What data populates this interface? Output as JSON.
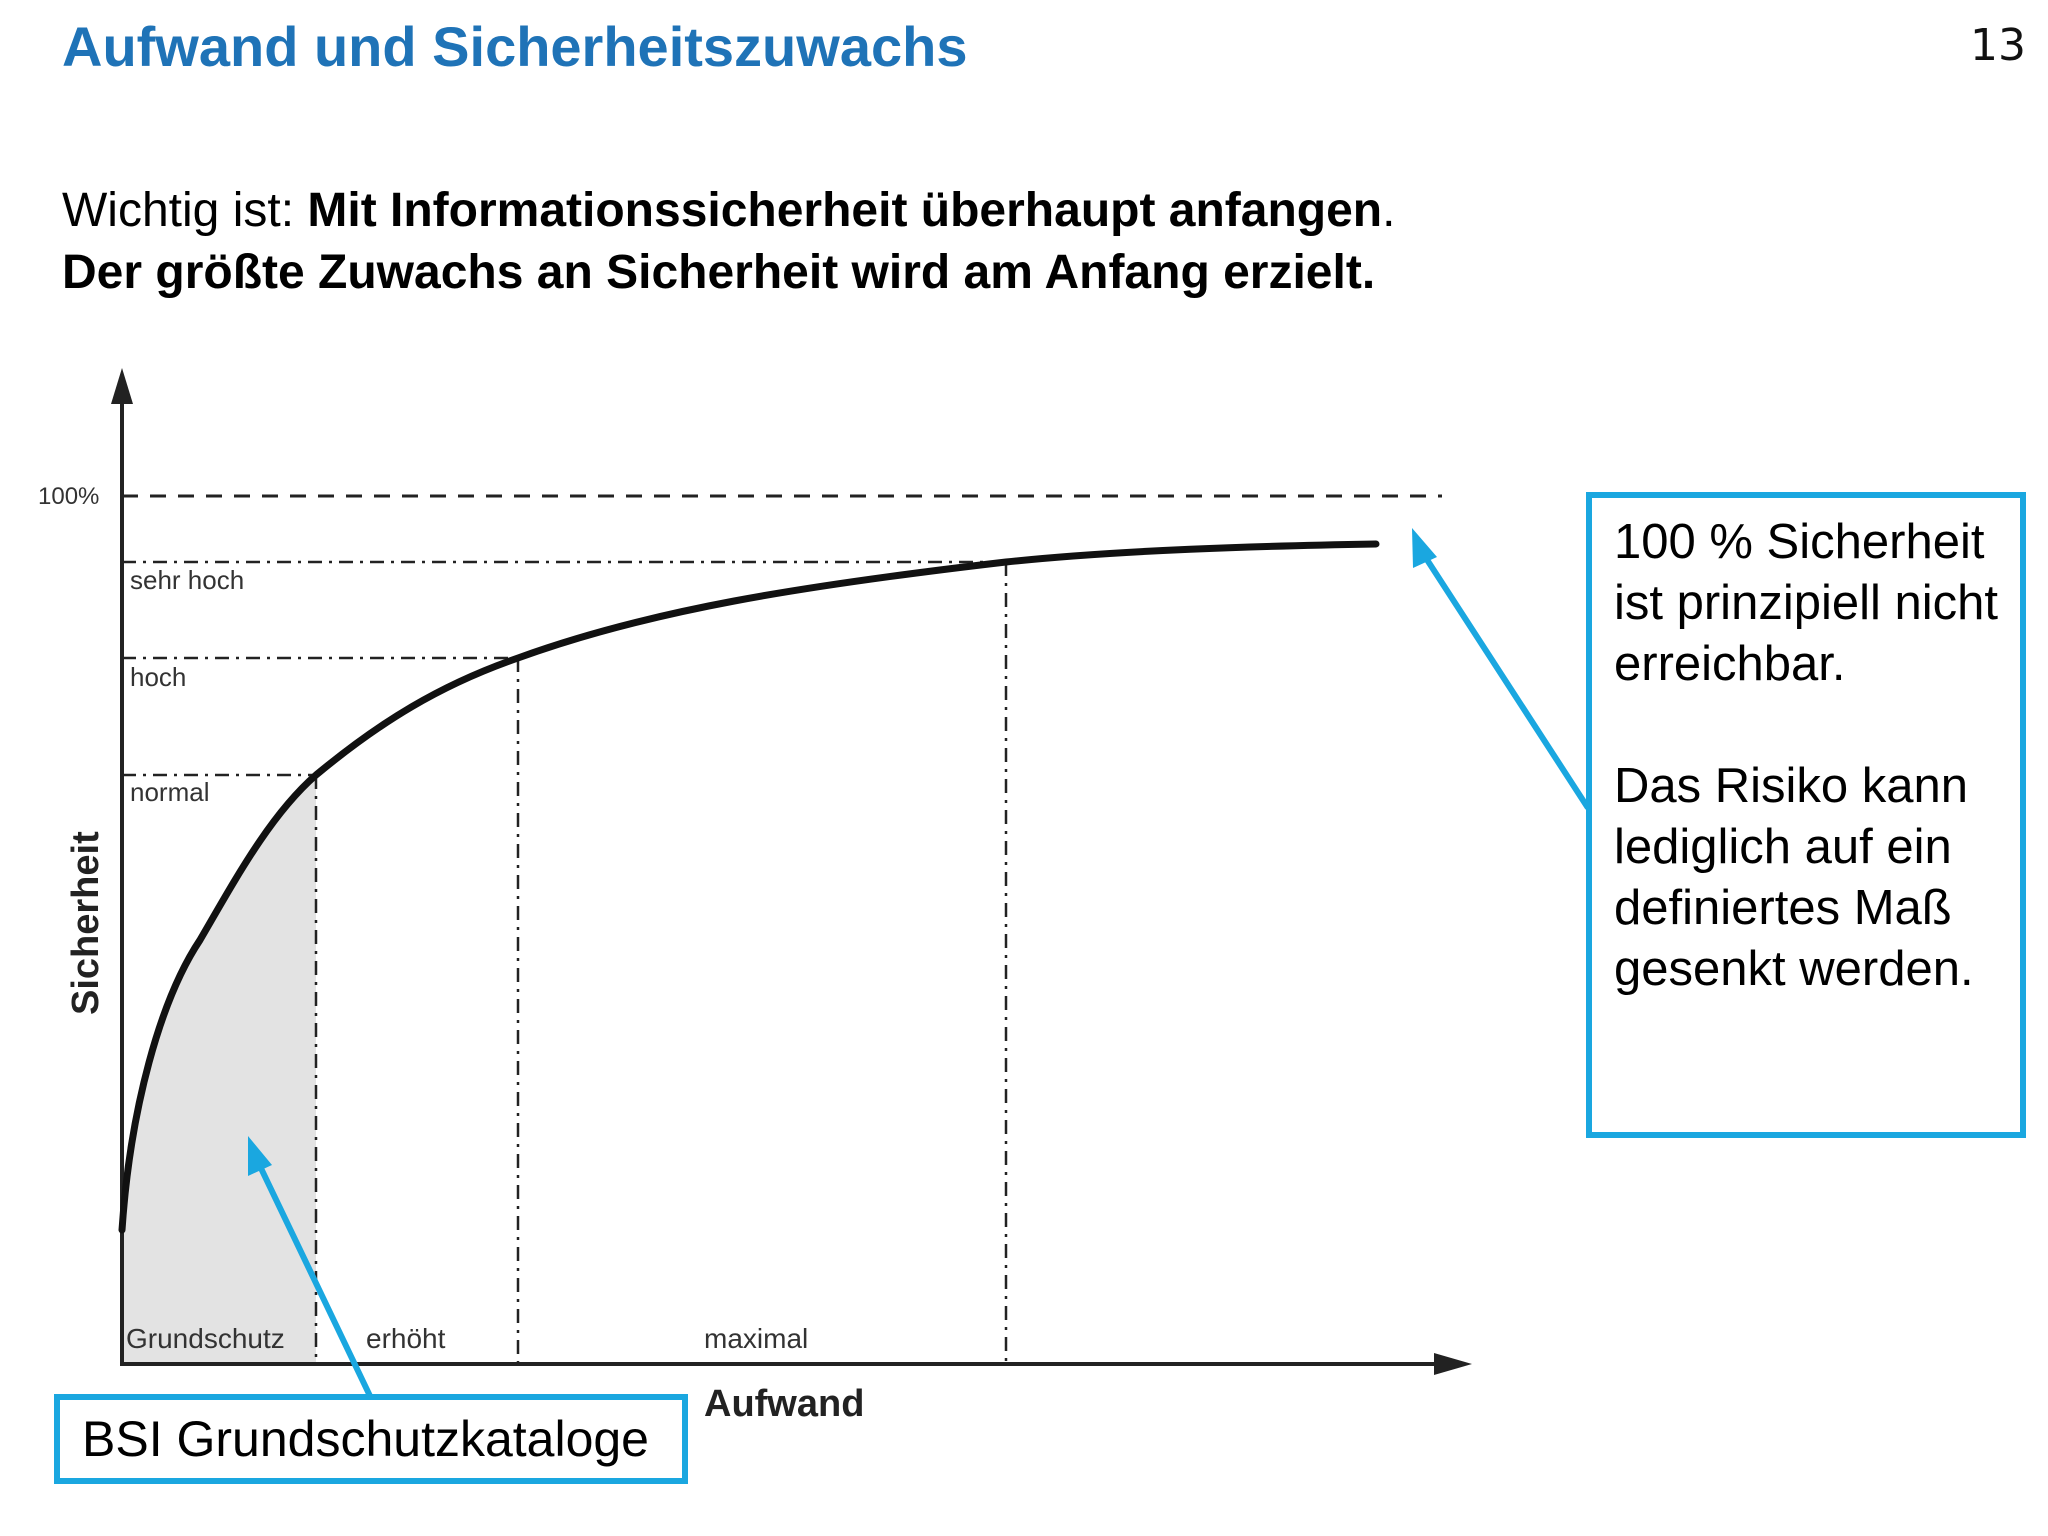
{
  "header": {
    "title": "Aufwand und Sicherheitszuwachs",
    "page_number": "13"
  },
  "intro": {
    "line1_prefix": "Wichtig ist: ",
    "line1_bold": "Mit Informationssicherheit überhaupt anfangen",
    "line1_suffix": ".",
    "line2_bold": "Der größte Zuwachs an Sicherheit wird am Anfang erzielt."
  },
  "chart_data": {
    "type": "line",
    "xlabel": "Aufwand",
    "ylabel": "Sicherheit",
    "y_max_label": "100%",
    "security_levels": [
      {
        "label": "normal"
      },
      {
        "label": "hoch"
      },
      {
        "label": "sehr hoch"
      }
    ],
    "effort_zones": [
      {
        "label": "Grundschutz"
      },
      {
        "label": "erhöht"
      },
      {
        "label": "maximal"
      }
    ],
    "shaded_zone": "Grundschutz",
    "curve": "saturating curve approaching 100% without reaching it"
  },
  "callouts": {
    "right_para1": "100 % Sicherheit ist prinzipiell nicht erreichbar.",
    "right_para2": "Das Risiko kann lediglich auf ein definiertes Maß gesenkt werden.",
    "left": "BSI Grundschutzkataloge"
  },
  "colors": {
    "title": "#1f73b7",
    "callout_border": "#1aa7e0",
    "shaded_zone": "#e3e3e3"
  }
}
